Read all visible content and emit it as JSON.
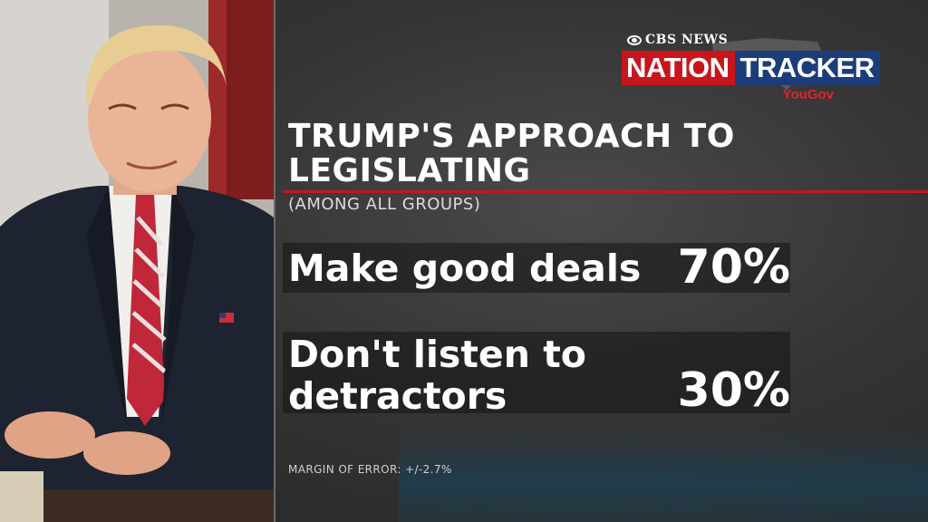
{
  "header": {
    "network": "CBS NEWS",
    "brand_left": "NATION",
    "brand_right": "TRACKER",
    "partner": "YouGov"
  },
  "chart_data": {
    "type": "table",
    "title": "TRUMP'S APPROACH TO LEGISLATING",
    "subtitle": "(AMONG ALL GROUPS)",
    "rows": [
      {
        "label": "Make good deals",
        "value": "70%"
      },
      {
        "label": "Don't listen to detractors",
        "value": "30%"
      }
    ],
    "footnote": "MARGIN OF ERROR: +/-2.7%"
  },
  "colors": {
    "nation_red": "#c8151b",
    "tracker_blue": "#1c3d7a",
    "accent_rule": "#c8151b"
  }
}
